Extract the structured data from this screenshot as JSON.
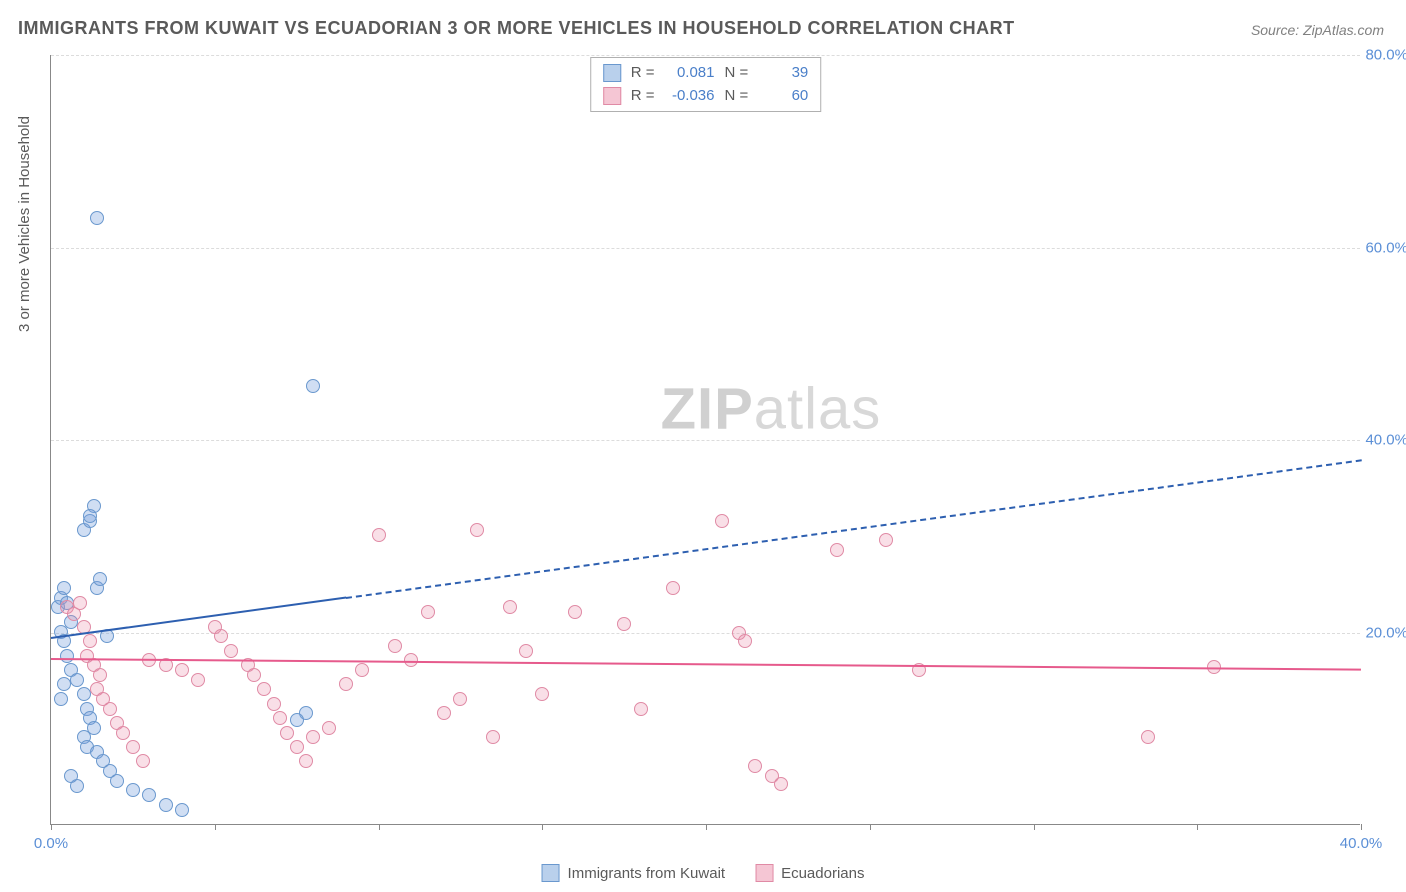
{
  "title": "IMMIGRANTS FROM KUWAIT VS ECUADORIAN 3 OR MORE VEHICLES IN HOUSEHOLD CORRELATION CHART",
  "source": "Source: ZipAtlas.com",
  "y_axis_label": "3 or more Vehicles in Household",
  "watermark_zip": "ZIP",
  "watermark_atlas": "atlas",
  "chart": {
    "type": "scatter",
    "xlim": [
      0,
      40
    ],
    "ylim": [
      0,
      80
    ],
    "x_tick_labels": {
      "0": "0.0%",
      "40": "40.0%"
    },
    "x_tick_positions": [
      0,
      5,
      10,
      15,
      20,
      25,
      30,
      35,
      40
    ],
    "y_ticks": [
      20,
      40,
      60,
      80
    ],
    "y_tick_labels": {
      "20": "20.0%",
      "40": "40.0%",
      "60": "60.0%",
      "80": "80.0%"
    },
    "background_color": "#ffffff",
    "grid_color": "#dcdcdc",
    "axis_color": "#888888",
    "marker_radius": 7,
    "series": [
      {
        "name": "Immigrants from Kuwait",
        "color_fill": "rgba(120,160,220,0.35)",
        "color_stroke": "#6a98ce",
        "swatch_fill": "#b9d0ec",
        "swatch_border": "#6a98ce",
        "R": "0.081",
        "N": "39",
        "trend": {
          "x1": 0,
          "y1": 19.5,
          "x2_solid": 9,
          "y2_solid": 23.7,
          "x2": 40,
          "y2": 38,
          "color": "#2d5fb0",
          "width": 2
        },
        "points": [
          [
            0.2,
            22.5
          ],
          [
            0.3,
            23.5
          ],
          [
            0.4,
            24.5
          ],
          [
            0.5,
            23.0
          ],
          [
            0.6,
            21.0
          ],
          [
            0.3,
            20.0
          ],
          [
            0.4,
            19.0
          ],
          [
            0.5,
            17.5
          ],
          [
            0.6,
            16.0
          ],
          [
            0.4,
            14.5
          ],
          [
            0.3,
            13.0
          ],
          [
            1.0,
            30.5
          ],
          [
            1.2,
            31.5
          ],
          [
            1.3,
            33.0
          ],
          [
            1.2,
            32.0
          ],
          [
            1.4,
            24.5
          ],
          [
            1.5,
            25.5
          ],
          [
            0.8,
            15.0
          ],
          [
            1.0,
            13.5
          ],
          [
            1.1,
            12.0
          ],
          [
            1.2,
            11.0
          ],
          [
            1.3,
            10.0
          ],
          [
            1.0,
            9.0
          ],
          [
            1.1,
            8.0
          ],
          [
            1.4,
            7.5
          ],
          [
            1.6,
            6.5
          ],
          [
            1.8,
            5.5
          ],
          [
            2.0,
            4.5
          ],
          [
            2.5,
            3.5
          ],
          [
            3.0,
            3.0
          ],
          [
            3.5,
            2.0
          ],
          [
            4.0,
            1.5
          ],
          [
            0.8,
            4.0
          ],
          [
            0.6,
            5.0
          ],
          [
            1.4,
            63.0
          ],
          [
            8.0,
            45.5
          ],
          [
            7.8,
            11.5
          ],
          [
            7.5,
            10.8
          ],
          [
            1.7,
            19.5
          ]
        ]
      },
      {
        "name": "Ecuadorians",
        "color_fill": "rgba(235,140,170,0.28)",
        "color_stroke": "#e08aa5",
        "swatch_fill": "#f5c6d4",
        "swatch_border": "#e08aa5",
        "R": "-0.036",
        "N": "60",
        "trend": {
          "x1": 0,
          "y1": 17.3,
          "x2_solid": 40,
          "y2_solid": 16.2,
          "x2": 40,
          "y2": 16.2,
          "color": "#e65a8c",
          "width": 2
        },
        "points": [
          [
            0.5,
            22.5
          ],
          [
            0.7,
            21.8
          ],
          [
            0.9,
            23.0
          ],
          [
            1.0,
            20.5
          ],
          [
            1.2,
            19.0
          ],
          [
            1.1,
            17.5
          ],
          [
            1.3,
            16.5
          ],
          [
            1.5,
            15.5
          ],
          [
            1.4,
            14.0
          ],
          [
            1.6,
            13.0
          ],
          [
            1.8,
            12.0
          ],
          [
            2.0,
            10.5
          ],
          [
            2.2,
            9.5
          ],
          [
            2.5,
            8.0
          ],
          [
            2.8,
            6.5
          ],
          [
            3.0,
            17.0
          ],
          [
            3.5,
            16.5
          ],
          [
            4.0,
            16.0
          ],
          [
            4.5,
            15.0
          ],
          [
            5.0,
            20.5
          ],
          [
            5.2,
            19.5
          ],
          [
            5.5,
            18.0
          ],
          [
            6.0,
            16.5
          ],
          [
            6.2,
            15.5
          ],
          [
            6.5,
            14.0
          ],
          [
            6.8,
            12.5
          ],
          [
            7.0,
            11.0
          ],
          [
            7.2,
            9.5
          ],
          [
            7.5,
            8.0
          ],
          [
            7.8,
            6.5
          ],
          [
            8.0,
            9.0
          ],
          [
            8.5,
            10.0
          ],
          [
            9.0,
            14.5
          ],
          [
            9.5,
            16.0
          ],
          [
            10.0,
            30.0
          ],
          [
            10.5,
            18.5
          ],
          [
            11.0,
            17.0
          ],
          [
            11.5,
            22.0
          ],
          [
            12.0,
            11.5
          ],
          [
            12.5,
            13.0
          ],
          [
            13.0,
            30.5
          ],
          [
            13.5,
            9.0
          ],
          [
            14.0,
            22.5
          ],
          [
            14.5,
            18.0
          ],
          [
            15.0,
            13.5
          ],
          [
            16.0,
            22.0
          ],
          [
            17.5,
            20.8
          ],
          [
            18.0,
            12.0
          ],
          [
            19.0,
            24.5
          ],
          [
            20.5,
            31.5
          ],
          [
            21.0,
            19.8
          ],
          [
            21.2,
            19.0
          ],
          [
            21.5,
            6.0
          ],
          [
            22.0,
            5.0
          ],
          [
            22.3,
            4.2
          ],
          [
            24.0,
            28.5
          ],
          [
            25.5,
            29.5
          ],
          [
            26.5,
            16.0
          ],
          [
            33.5,
            9.0
          ],
          [
            35.5,
            16.3
          ]
        ]
      }
    ]
  },
  "stats_box": {
    "r_label": "R =",
    "n_label": "N ="
  }
}
